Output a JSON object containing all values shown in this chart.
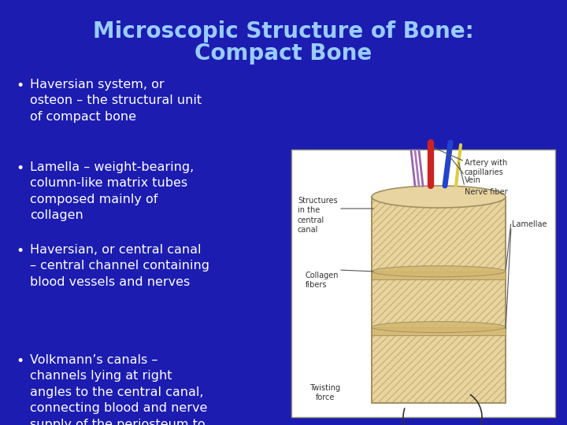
{
  "background_color": "#1c1cb0",
  "title_line1": "Microscopic Structure of Bone:",
  "title_line2": "Compact Bone",
  "title_color": "#99ccff",
  "title_fontsize": 20,
  "bullet_color": "#ffffff",
  "bullet_fontsize": 11.5,
  "bullets": [
    "Haversian system, or\nosteon – the structural unit\nof compact bone",
    "Lamella – weight-bearing,\ncolumn-like matrix tubes\ncomposed mainly of\ncollagen",
    "Haversian, or central canal\n– central channel containing\nblood vessels and nerves",
    "Volkmann’s canals –\nchannels lying at right\nangles to the central canal,\nconnecting blood and nerve\nsupply of the periosteum to\nthat of the Haversian canal"
  ],
  "fig_width": 7.2,
  "fig_height": 5.4,
  "dpi": 100,
  "img_box_color": "#ffffff",
  "bone_main_color": "#e8d4a0",
  "bone_stripe_color": "#c8b070",
  "bone_dark_stripe": "#a89050",
  "bone_band_color": "#d4b870"
}
